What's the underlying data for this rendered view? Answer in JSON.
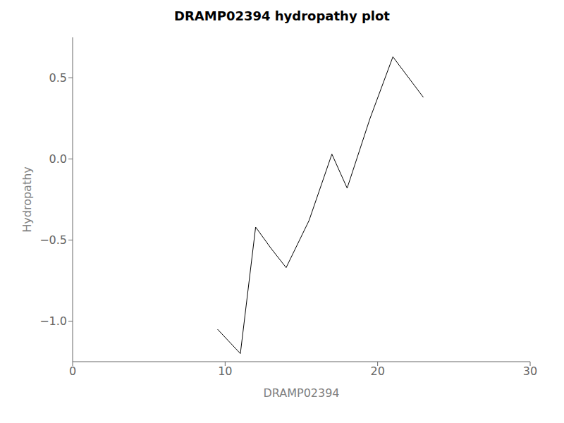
{
  "chart_data": {
    "type": "line",
    "title": "DRAMP02394 hydropathy plot",
    "xlabel": "DRAMP02394",
    "ylabel": "Hydropathy",
    "x": [
      9.5,
      11.0,
      12.0,
      13.0,
      14.0,
      15.5,
      17.0,
      18.0,
      19.5,
      21.0,
      23.0
    ],
    "values": [
      -1.05,
      -1.2,
      -0.42,
      -0.55,
      -0.67,
      -0.38,
      0.03,
      -0.18,
      0.25,
      0.63,
      0.38
    ],
    "color": "black",
    "xlim": [
      0,
      30
    ],
    "ylim": [
      -1.25,
      0.75
    ],
    "xticks": [
      0,
      10,
      20,
      30
    ],
    "yticks": [
      {
        "value": -1.0,
        "label": "−1.0"
      },
      {
        "value": -0.5,
        "label": "−0.5"
      },
      {
        "value": 0.0,
        "label": "0.0"
      },
      {
        "value": 0.5,
        "label": "0.5"
      }
    ],
    "grid": false
  }
}
